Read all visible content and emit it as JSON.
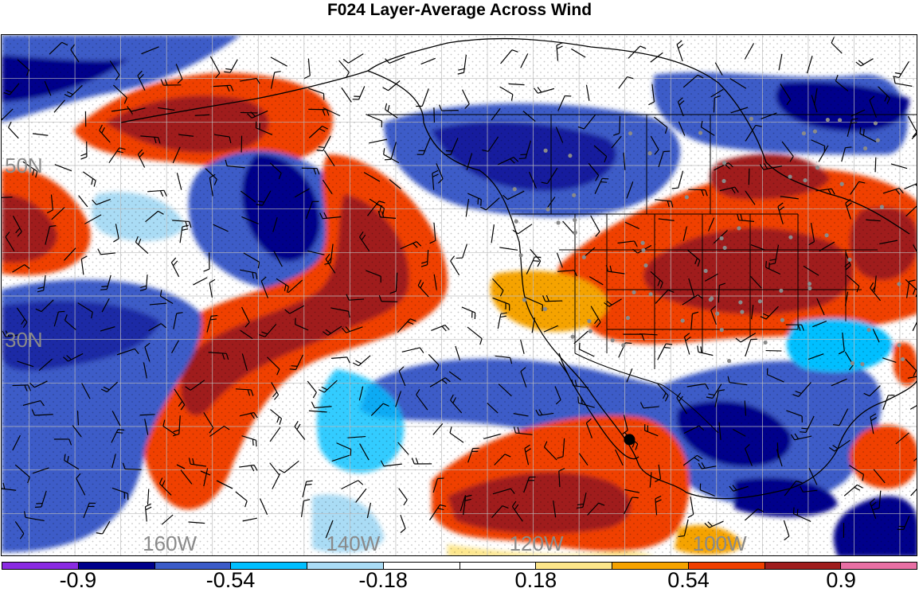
{
  "title": "F024 Layer-Average Across Wind",
  "map": {
    "region": "North Pacific and western/central North America",
    "projection": "cylindrical",
    "lon_range_deg": [
      -178,
      -78
    ],
    "lat_range_deg": [
      5,
      65
    ],
    "lat_labels": [
      {
        "lat": 50,
        "text": "50N"
      },
      {
        "lat": 30,
        "text": "30N"
      }
    ],
    "lon_labels": [
      {
        "lon": -160,
        "text": "160W"
      },
      {
        "lon": -140,
        "text": "140W"
      },
      {
        "lon": -120,
        "text": "120W"
      },
      {
        "lon": -100,
        "text": "100W"
      }
    ],
    "overlays": [
      "coastlines",
      "political boundaries",
      "wind barbs",
      "station dots",
      "stippling"
    ],
    "highlight_marker": {
      "lon": -109.5,
      "lat": 18.5,
      "color": "#000000"
    }
  },
  "colorbar": {
    "colors": [
      "#8a2be2",
      "#00008b",
      "#3c5cc8",
      "#00bfff",
      "#aadcf5",
      "#ffffff",
      "#ffffff",
      "#fde68a",
      "#f5a300",
      "#f04000",
      "#a01e1e",
      "#e86fa4"
    ],
    "labels": [
      "-0.9",
      "-0.54",
      "-0.18",
      "0.18",
      "0.54",
      "0.9"
    ],
    "label_boundary_index": [
      1,
      3,
      5,
      7,
      9,
      11
    ]
  }
}
